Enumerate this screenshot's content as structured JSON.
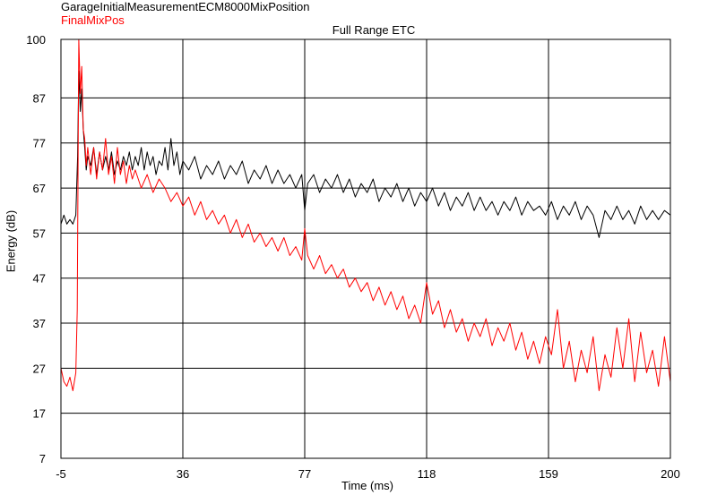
{
  "chart_data": {
    "type": "line",
    "title": "Full Range ETC",
    "xlabel": "Time (ms)",
    "ylabel": "Energy (dB)",
    "xlim": [
      -5,
      200
    ],
    "ylim": [
      7,
      100
    ],
    "x_ticks": [
      "-5",
      "36",
      "77",
      "118",
      "159",
      "200"
    ],
    "y_ticks": [
      "100",
      "87",
      "77",
      "67",
      "57",
      "47",
      "37",
      "27",
      "17",
      "7"
    ],
    "x_tick_values": [
      -5,
      36,
      77,
      118,
      159,
      200
    ],
    "y_tick_values": [
      100,
      87,
      77,
      67,
      57,
      47,
      37,
      27,
      17,
      7
    ],
    "grid": true,
    "legend_position": "top-left",
    "series": [
      {
        "name": "GarageInitialMeasurementECM8000MixPosition",
        "color": "#000000",
        "points": [
          [
            -5,
            59
          ],
          [
            -4,
            61
          ],
          [
            -3,
            59
          ],
          [
            -2,
            60
          ],
          [
            -1,
            59
          ],
          [
            0,
            61
          ],
          [
            0.6,
            74
          ],
          [
            1,
            93
          ],
          [
            1.5,
            84
          ],
          [
            2,
            89
          ],
          [
            2.5,
            80
          ],
          [
            3,
            76
          ],
          [
            3.5,
            71
          ],
          [
            4,
            74
          ],
          [
            5,
            72
          ],
          [
            6,
            76
          ],
          [
            7,
            70
          ],
          [
            8,
            75
          ],
          [
            9,
            71
          ],
          [
            10,
            74
          ],
          [
            11,
            71
          ],
          [
            12,
            75
          ],
          [
            13,
            70
          ],
          [
            14,
            73
          ],
          [
            15,
            71
          ],
          [
            16,
            74
          ],
          [
            17,
            72
          ],
          [
            18,
            75
          ],
          [
            19,
            71
          ],
          [
            20,
            74
          ],
          [
            21,
            72
          ],
          [
            22,
            76
          ],
          [
            23,
            71
          ],
          [
            24,
            75
          ],
          [
            25,
            72
          ],
          [
            26,
            74
          ],
          [
            27,
            70
          ],
          [
            28,
            73
          ],
          [
            29,
            72
          ],
          [
            30,
            76
          ],
          [
            31,
            71
          ],
          [
            32,
            78
          ],
          [
            33,
            72
          ],
          [
            34,
            75
          ],
          [
            35,
            70
          ],
          [
            36,
            73
          ],
          [
            38,
            71
          ],
          [
            40,
            74
          ],
          [
            42,
            69
          ],
          [
            44,
            72
          ],
          [
            46,
            70
          ],
          [
            48,
            73
          ],
          [
            50,
            69
          ],
          [
            52,
            72
          ],
          [
            54,
            70
          ],
          [
            56,
            73
          ],
          [
            58,
            68
          ],
          [
            60,
            71
          ],
          [
            62,
            69
          ],
          [
            64,
            72
          ],
          [
            66,
            68
          ],
          [
            68,
            71
          ],
          [
            70,
            68
          ],
          [
            72,
            70
          ],
          [
            74,
            67
          ],
          [
            76,
            70
          ],
          [
            77,
            62
          ],
          [
            78,
            68
          ],
          [
            80,
            70
          ],
          [
            82,
            66
          ],
          [
            84,
            69
          ],
          [
            86,
            67
          ],
          [
            88,
            70
          ],
          [
            90,
            66
          ],
          [
            92,
            69
          ],
          [
            94,
            65
          ],
          [
            96,
            68
          ],
          [
            98,
            66
          ],
          [
            100,
            69
          ],
          [
            102,
            64
          ],
          [
            104,
            67
          ],
          [
            106,
            65
          ],
          [
            108,
            68
          ],
          [
            110,
            64
          ],
          [
            112,
            67
          ],
          [
            114,
            63
          ],
          [
            116,
            66
          ],
          [
            118,
            64
          ],
          [
            120,
            67
          ],
          [
            122,
            63
          ],
          [
            124,
            66
          ],
          [
            126,
            62
          ],
          [
            128,
            65
          ],
          [
            130,
            63
          ],
          [
            132,
            66
          ],
          [
            134,
            62
          ],
          [
            136,
            65
          ],
          [
            138,
            62
          ],
          [
            140,
            64
          ],
          [
            142,
            61
          ],
          [
            144,
            64
          ],
          [
            146,
            62
          ],
          [
            148,
            65
          ],
          [
            150,
            61
          ],
          [
            152,
            64
          ],
          [
            154,
            62
          ],
          [
            156,
            63
          ],
          [
            158,
            61
          ],
          [
            160,
            64
          ],
          [
            162,
            60
          ],
          [
            164,
            63
          ],
          [
            166,
            61
          ],
          [
            168,
            64
          ],
          [
            170,
            60
          ],
          [
            172,
            63
          ],
          [
            174,
            61
          ],
          [
            176,
            56
          ],
          [
            178,
            62
          ],
          [
            180,
            60
          ],
          [
            182,
            63
          ],
          [
            184,
            60
          ],
          [
            186,
            62
          ],
          [
            188,
            59
          ],
          [
            190,
            63
          ],
          [
            192,
            60
          ],
          [
            194,
            62
          ],
          [
            196,
            60
          ],
          [
            198,
            62
          ],
          [
            200,
            61
          ]
        ]
      },
      {
        "name": "FinalMixPos",
        "color": "#ff0000",
        "points": [
          [
            -5,
            27
          ],
          [
            -4,
            24
          ],
          [
            -3,
            23
          ],
          [
            -2,
            25
          ],
          [
            -1,
            22
          ],
          [
            0,
            26
          ],
          [
            0.5,
            40
          ],
          [
            1,
            100
          ],
          [
            1.5,
            88
          ],
          [
            2,
            94
          ],
          [
            2.5,
            80
          ],
          [
            3,
            78
          ],
          [
            3.5,
            72
          ],
          [
            4,
            76
          ],
          [
            5,
            70
          ],
          [
            6,
            76
          ],
          [
            7,
            69
          ],
          [
            8,
            75
          ],
          [
            9,
            71
          ],
          [
            10,
            78
          ],
          [
            11,
            70
          ],
          [
            12,
            74
          ],
          [
            13,
            68
          ],
          [
            14,
            76
          ],
          [
            15,
            70
          ],
          [
            16,
            73
          ],
          [
            17,
            68
          ],
          [
            18,
            72
          ],
          [
            19,
            69
          ],
          [
            20,
            71
          ],
          [
            22,
            67
          ],
          [
            24,
            70
          ],
          [
            26,
            66
          ],
          [
            28,
            69
          ],
          [
            30,
            67
          ],
          [
            32,
            64
          ],
          [
            34,
            66
          ],
          [
            36,
            63
          ],
          [
            38,
            65
          ],
          [
            40,
            61
          ],
          [
            42,
            64
          ],
          [
            44,
            60
          ],
          [
            46,
            62
          ],
          [
            48,
            59
          ],
          [
            50,
            61
          ],
          [
            52,
            57
          ],
          [
            54,
            60
          ],
          [
            56,
            56
          ],
          [
            58,
            59
          ],
          [
            60,
            55
          ],
          [
            62,
            57
          ],
          [
            64,
            54
          ],
          [
            66,
            56
          ],
          [
            68,
            53
          ],
          [
            70,
            56
          ],
          [
            72,
            52
          ],
          [
            74,
            54
          ],
          [
            76,
            51
          ],
          [
            77,
            58
          ],
          [
            78,
            52
          ],
          [
            80,
            49
          ],
          [
            82,
            52
          ],
          [
            84,
            48
          ],
          [
            86,
            50
          ],
          [
            88,
            47
          ],
          [
            90,
            49
          ],
          [
            92,
            45
          ],
          [
            94,
            47
          ],
          [
            96,
            44
          ],
          [
            98,
            46
          ],
          [
            100,
            42
          ],
          [
            102,
            45
          ],
          [
            104,
            41
          ],
          [
            106,
            44
          ],
          [
            108,
            40
          ],
          [
            110,
            43
          ],
          [
            112,
            38
          ],
          [
            114,
            41
          ],
          [
            116,
            37
          ],
          [
            118,
            46
          ],
          [
            120,
            39
          ],
          [
            122,
            42
          ],
          [
            124,
            36
          ],
          [
            126,
            40
          ],
          [
            128,
            35
          ],
          [
            130,
            38
          ],
          [
            132,
            33
          ],
          [
            134,
            37
          ],
          [
            136,
            34
          ],
          [
            138,
            38
          ],
          [
            140,
            32
          ],
          [
            142,
            36
          ],
          [
            144,
            33
          ],
          [
            146,
            37
          ],
          [
            148,
            31
          ],
          [
            150,
            35
          ],
          [
            152,
            29
          ],
          [
            154,
            33
          ],
          [
            156,
            28
          ],
          [
            158,
            34
          ],
          [
            160,
            30
          ],
          [
            162,
            40
          ],
          [
            164,
            27
          ],
          [
            166,
            33
          ],
          [
            168,
            24
          ],
          [
            170,
            31
          ],
          [
            172,
            26
          ],
          [
            174,
            34
          ],
          [
            176,
            22
          ],
          [
            178,
            30
          ],
          [
            180,
            25
          ],
          [
            182,
            36
          ],
          [
            184,
            27
          ],
          [
            186,
            38
          ],
          [
            188,
            24
          ],
          [
            190,
            35
          ],
          [
            192,
            26
          ],
          [
            194,
            31
          ],
          [
            196,
            23
          ],
          [
            198,
            34
          ],
          [
            200,
            24
          ]
        ]
      }
    ]
  }
}
